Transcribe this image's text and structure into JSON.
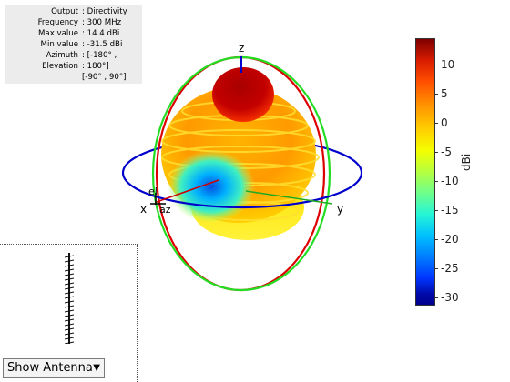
{
  "info": {
    "rows": [
      {
        "key": "Output",
        "value": ": Directivity"
      },
      {
        "key": "Frequency",
        "value": ": 300 MHz"
      },
      {
        "key": "Max value",
        "value": ": 14.4 dBi"
      },
      {
        "key": "Min value",
        "value": ": -31.5 dBi"
      },
      {
        "key": "Azimuth",
        "value": ": [-180° ,"
      },
      {
        "key": "Elevation",
        "value": ": 180°]"
      },
      {
        "key": "",
        "value": "[-90° , 90°]"
      }
    ]
  },
  "axes": {
    "z": "z",
    "x": "x",
    "y": "y",
    "el": "el",
    "az": "az"
  },
  "colorbar": {
    "title": "dBi",
    "ticks": [
      "10",
      "5",
      "0",
      "-5",
      "-10",
      "-15",
      "-20",
      "-25",
      "-30"
    ]
  },
  "controls": {
    "show_antenna_label": "Show Antenna",
    "dropdown_icon": "triangle-down"
  },
  "colors": {
    "ring_blue": "#0000cc",
    "ring_red": "#dd0000",
    "ring_green": "#22dd22"
  }
}
